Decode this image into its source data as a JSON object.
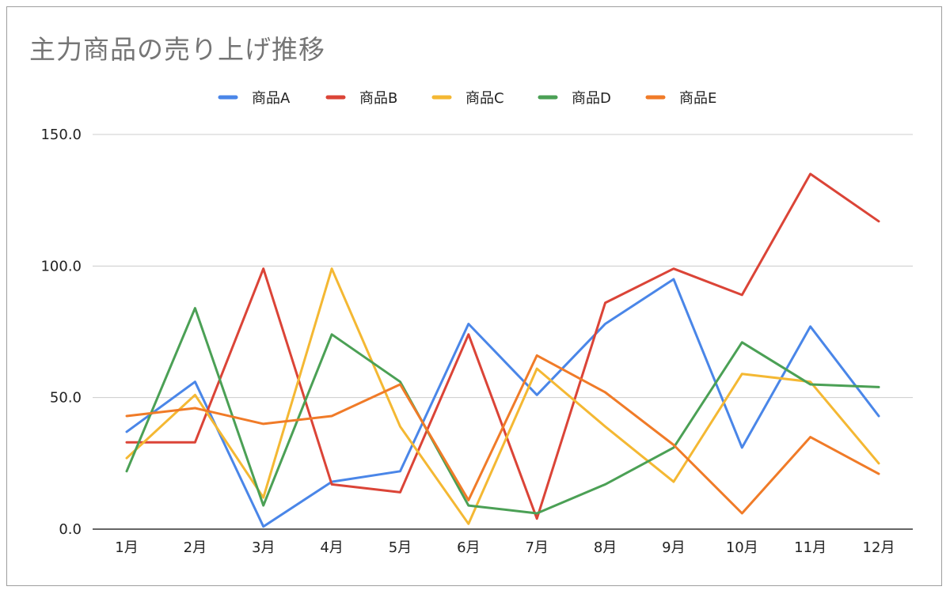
{
  "chart_data": {
    "type": "line",
    "title": "主力商品の売り上げ推移",
    "categories": [
      "1月",
      "2月",
      "3月",
      "4月",
      "5月",
      "6月",
      "7月",
      "8月",
      "9月",
      "10月",
      "11月",
      "12月"
    ],
    "ylim": [
      0,
      150
    ],
    "yticks": [
      "0.0",
      "50.0",
      "100.0",
      "150.0"
    ],
    "ytick_values": [
      0,
      50,
      100,
      150
    ],
    "grid": true,
    "legend_position": "top",
    "series": [
      {
        "name": "商品A",
        "color": "#4a86e8",
        "values": [
          37,
          56,
          1,
          18,
          22,
          78,
          51,
          78,
          95,
          31,
          77,
          43
        ]
      },
      {
        "name": "商品B",
        "color": "#db4437",
        "values": [
          33,
          33,
          99,
          17,
          14,
          74,
          4,
          86,
          99,
          89,
          135,
          117
        ]
      },
      {
        "name": "商品C",
        "color": "#f4b833",
        "values": [
          27,
          51,
          12,
          99,
          39,
          2,
          61,
          39,
          18,
          59,
          56,
          25
        ]
      },
      {
        "name": "商品D",
        "color": "#4ba055",
        "values": [
          22,
          84,
          9,
          74,
          56,
          9,
          6,
          17,
          31,
          71,
          55,
          54
        ]
      },
      {
        "name": "商品E",
        "color": "#f07b28",
        "values": [
          43,
          46,
          40,
          43,
          55,
          11,
          66,
          52,
          32,
          6,
          35,
          21
        ]
      }
    ]
  }
}
